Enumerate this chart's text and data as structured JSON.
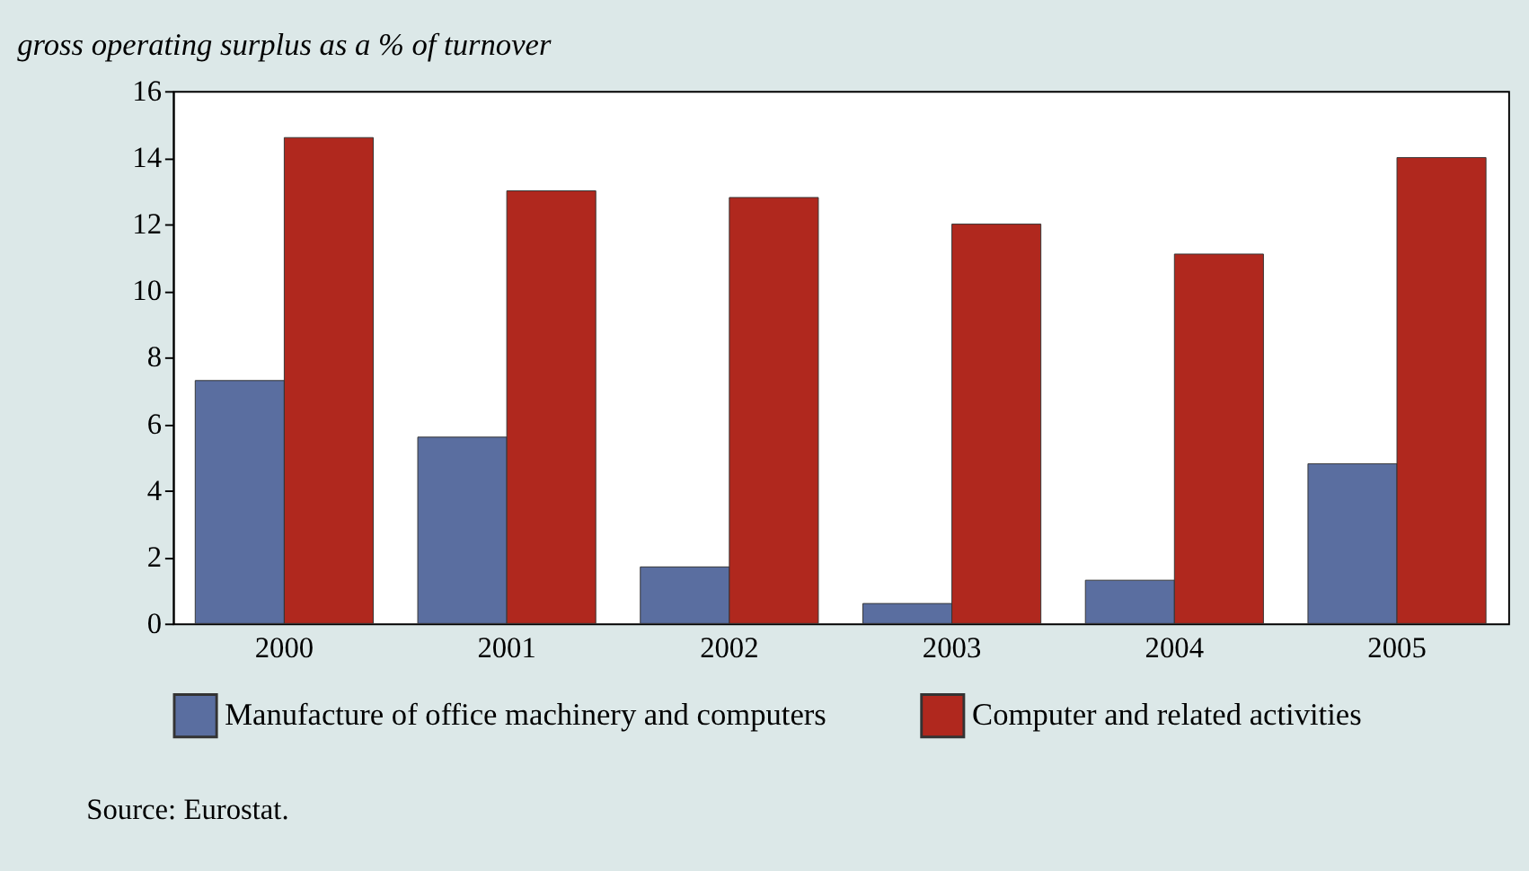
{
  "chart_data": {
    "type": "bar",
    "title": "gross operating surplus as a % of turnover",
    "categories": [
      "2000",
      "2001",
      "2002",
      "2003",
      "2004",
      "2005"
    ],
    "series": [
      {
        "name": "Manufacture of office machinery and computers",
        "color": "#5a6ea0",
        "values": [
          7.3,
          5.6,
          1.7,
          0.6,
          1.3,
          4.8
        ]
      },
      {
        "name": "Computer and related activities",
        "color": "#b0281e",
        "values": [
          14.6,
          13.0,
          12.8,
          12.0,
          11.1,
          14.0
        ]
      }
    ],
    "ylim": [
      0,
      16
    ],
    "yticks": [
      0,
      2,
      4,
      6,
      8,
      10,
      12,
      14,
      16
    ],
    "grid": false,
    "legend": "bottom",
    "annotations": [
      "Source: Eurostat."
    ]
  }
}
